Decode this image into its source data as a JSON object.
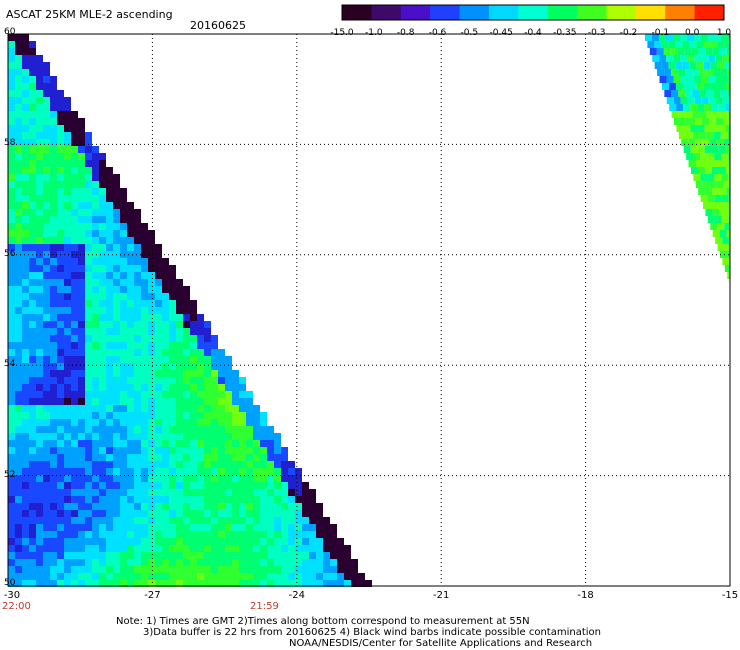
{
  "header": {
    "title": "ASCAT 25KM MLE-2 ascending",
    "date": "20160625"
  },
  "colorbar": {
    "labels": [
      "-15.0",
      "-1.0",
      "-0.8",
      "-0.6",
      "-0.5",
      "-0.45",
      "-0.4",
      "-0.35",
      "-0.3",
      "-0.2",
      "-0.1",
      "0.0",
      "1.0"
    ],
    "colors": [
      "#2a0020",
      "#3d0a6a",
      "#4a10c8",
      "#2040ff",
      "#0090ff",
      "#00d8ff",
      "#00ffd0",
      "#00ff60",
      "#40ff20",
      "#b0ff00",
      "#ffe000",
      "#ff8000",
      "#ff2000"
    ]
  },
  "map": {
    "x_ticks": [
      "-30",
      "-27",
      "-24",
      "-21",
      "-18",
      "-15"
    ],
    "y_ticks": [
      "60",
      "58",
      "56",
      "54",
      "52",
      "50"
    ],
    "time_labels": [
      "22:00",
      "21:59"
    ]
  },
  "footer": {
    "note1": "Note: 1) Times are GMT 2)Times along bottom correspond to measurement at 55N",
    "note2": "3)Data buffer is 22 hrs from 20160625 4) Black wind barbs indicate possible contamination",
    "note3": "NOAA/NESDIS/Center for Satellite Applications and Research"
  }
}
